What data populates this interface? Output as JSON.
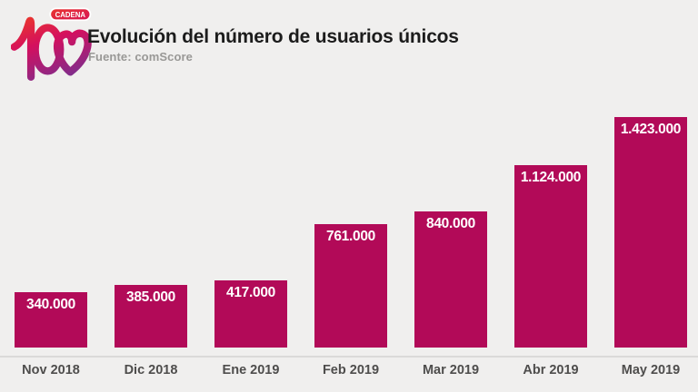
{
  "header": {
    "title": "Evolución del número de usuarios únicos",
    "source": "Fuente: comScore",
    "logo": {
      "badge": "CADENA",
      "number": "100"
    }
  },
  "theme": {
    "background": "#f0efee",
    "bar_color": "#b20a58",
    "title_color": "#1c1c1c",
    "source_color": "#999896",
    "axis_label_color": "#4e4d4c",
    "value_label_color": "#ffffff",
    "logo_gradient": [
      "#ee3d23",
      "#d40f5e",
      "#7a2f8f"
    ]
  },
  "chart_data": {
    "type": "bar",
    "title": "Evolución del número de usuarios únicos",
    "subtitle": "Fuente: comScore",
    "categories": [
      "Nov 2018",
      "Dic 2018",
      "Ene 2019",
      "Feb 2019",
      "Mar 2019",
      "Abr 2019",
      "May 2019"
    ],
    "values": [
      340000,
      385000,
      417000,
      761000,
      840000,
      1124000,
      1423000
    ],
    "value_labels": [
      "340.000",
      "385.000",
      "417.000",
      "761.000",
      "840.000",
      "1.124.000",
      "1.423.000"
    ],
    "xlabel": "",
    "ylabel": "",
    "ylim": [
      0,
      1423000
    ],
    "grid": false,
    "legend": false,
    "bar_color": "#b20a58",
    "label_position": "inside-top"
  }
}
